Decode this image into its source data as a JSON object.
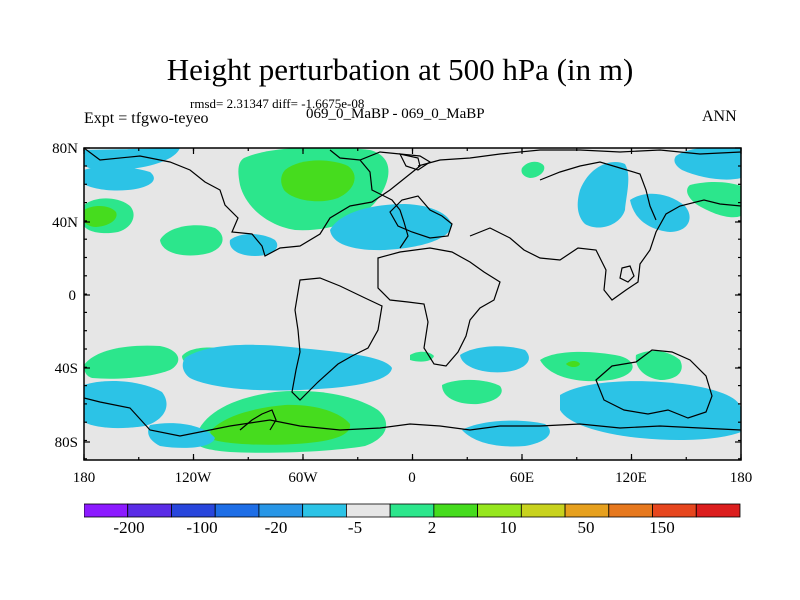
{
  "title": "Height perturbation at 500 hPa (in m)",
  "stats_text": "rmsd= 2.31347 diff= -1.6675e-08",
  "experiment_label": "Expt = tfgwo-teyeo",
  "comparison_label": "069_0_MaBP - 069_0_MaBP",
  "season_label": "ANN",
  "map": {
    "lat_ticks": [
      "80N",
      "40N",
      "0",
      "40S",
      "80S"
    ],
    "lon_ticks": [
      "180",
      "120W",
      "60W",
      "0",
      "60E",
      "120E",
      "180"
    ]
  },
  "colorbar": {
    "colors": [
      "#8c1aff",
      "#5a2ce6",
      "#2846dc",
      "#1e6ee6",
      "#2896e6",
      "#2cc3e6",
      "#e6e6e6",
      "#2ce68c",
      "#46dc1e",
      "#96e61e",
      "#c8d21e",
      "#e6a01e",
      "#e6781e",
      "#e6461e",
      "#dc1e1e"
    ],
    "labels": [
      "-200",
      "-100",
      "-20",
      "-5",
      "2",
      "10",
      "50",
      "150"
    ]
  },
  "legend_colors": {
    "blue": "#2cc3e6",
    "green": "#2ce68c",
    "bright_green": "#46dc1e",
    "background": "#e6e6e6"
  }
}
